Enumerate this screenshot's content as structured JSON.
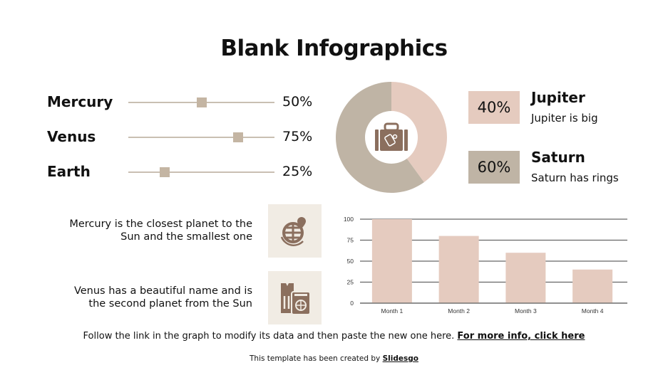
{
  "title": "Blank Infographics",
  "sliders": [
    {
      "label": "Mercury",
      "value": 50,
      "value_label": "50%"
    },
    {
      "label": "Venus",
      "value": 75,
      "value_label": "75%"
    },
    {
      "label": "Earth",
      "value": 25,
      "value_label": "25%"
    }
  ],
  "donut": {
    "icon": "suitcase-icon",
    "items": [
      {
        "name": "Jupiter",
        "percent_label": "40%",
        "value": 40,
        "description": "Jupiter is big",
        "color": "#e5cbbf"
      },
      {
        "name": "Saturn",
        "percent_label": "60%",
        "value": 60,
        "description": "Saturn has rings",
        "color": "#bfb4a5"
      }
    ]
  },
  "descriptions": [
    {
      "lines": [
        "Mercury is the closest planet to the",
        "Sun and the smallest one"
      ],
      "icon": "globe-location-icon"
    },
    {
      "lines": [
        "Venus has a beautiful name and is",
        "the second planet from the Sun"
      ],
      "icon": "ticket-passport-icon"
    }
  ],
  "chart_data": {
    "type": "bar",
    "categories": [
      "Month 1",
      "Month 2",
      "Month 3",
      "Month 4"
    ],
    "values": [
      100,
      80,
      60,
      40
    ],
    "ylim": [
      0,
      100
    ],
    "yticks": [
      0,
      25,
      50,
      75,
      100
    ],
    "grid": true,
    "bar_color": "#e5cbbf"
  },
  "footer": {
    "text": "Follow the link in the graph to modify its data and then paste the new one here. ",
    "link": "For more info, click here"
  },
  "credit": {
    "text": "This template has been created by ",
    "brand": "Slidesgo"
  },
  "colors": {
    "icon": "#8b6f5e",
    "icon_bg": "#f1ece4",
    "thumb": "#c4b5a3",
    "track": "#c9bfb2"
  }
}
